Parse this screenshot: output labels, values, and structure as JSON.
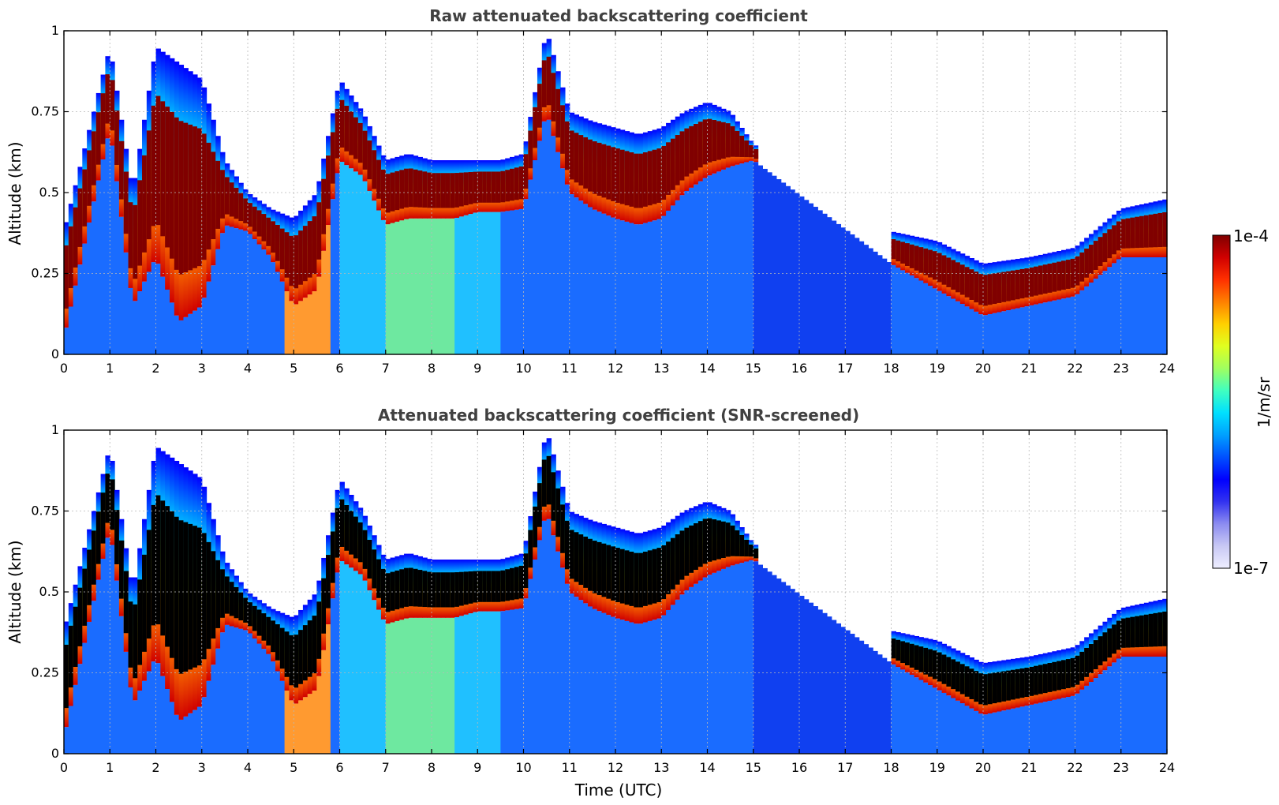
{
  "chart_data": [
    {
      "type": "heatmap",
      "title": "Raw attenuated backscattering coefficient",
      "xlabel": "",
      "ylabel": "Altitude (km)",
      "xlim": [
        0,
        24
      ],
      "ylim": [
        0,
        1
      ],
      "x_ticks": [
        "0",
        "1",
        "2",
        "3",
        "4",
        "5",
        "6",
        "7",
        "8",
        "9",
        "10",
        "11",
        "12",
        "13",
        "14",
        "15",
        "16",
        "17",
        "18",
        "19",
        "20",
        "21",
        "22",
        "23",
        "24"
      ],
      "y_ticks": [
        "0",
        "0.25",
        "0.5",
        "0.75",
        "1"
      ],
      "grid": true,
      "layer_top_km": [
        [
          0,
          0.38
        ],
        [
          1,
          0.95
        ],
        [
          1.5,
          0.5
        ],
        [
          2,
          0.95
        ],
        [
          2.5,
          0.9
        ],
        [
          3,
          0.85
        ],
        [
          3.5,
          0.6
        ],
        [
          4,
          0.5
        ],
        [
          4.5,
          0.45
        ],
        [
          5,
          0.42
        ],
        [
          5.5,
          0.5
        ],
        [
          6,
          0.85
        ],
        [
          6.5,
          0.75
        ],
        [
          7,
          0.6
        ],
        [
          7.5,
          0.62
        ],
        [
          8,
          0.6
        ],
        [
          8.5,
          0.6
        ],
        [
          9,
          0.6
        ],
        [
          9.5,
          0.6
        ],
        [
          10,
          0.62
        ],
        [
          10.5,
          1.0
        ],
        [
          11,
          0.75
        ],
        [
          11.5,
          0.72
        ],
        [
          12,
          0.7
        ],
        [
          12.5,
          0.68
        ],
        [
          13,
          0.7
        ],
        [
          13.5,
          0.75
        ],
        [
          14,
          0.78
        ],
        [
          14.5,
          0.75
        ],
        [
          15,
          0.65
        ],
        [
          18,
          0.38
        ],
        [
          19,
          0.35
        ],
        [
          20,
          0.28
        ],
        [
          21,
          0.3
        ],
        [
          22,
          0.33
        ],
        [
          23,
          0.45
        ],
        [
          24,
          0.48
        ]
      ],
      "layer_base_km": [
        [
          0,
          0.05
        ],
        [
          1,
          0.7
        ],
        [
          1.5,
          0.15
        ],
        [
          2,
          0.3
        ],
        [
          2.5,
          0.1
        ],
        [
          3,
          0.15
        ],
        [
          3.5,
          0.4
        ],
        [
          4,
          0.38
        ],
        [
          4.5,
          0.3
        ],
        [
          5,
          0.15
        ],
        [
          5.5,
          0.2
        ],
        [
          6,
          0.6
        ],
        [
          6.5,
          0.55
        ],
        [
          7,
          0.4
        ],
        [
          7.5,
          0.42
        ],
        [
          8,
          0.42
        ],
        [
          8.5,
          0.42
        ],
        [
          9,
          0.44
        ],
        [
          9.5,
          0.44
        ],
        [
          10,
          0.45
        ],
        [
          10.5,
          0.75
        ],
        [
          11,
          0.5
        ],
        [
          11.5,
          0.45
        ],
        [
          12,
          0.42
        ],
        [
          12.5,
          0.4
        ],
        [
          13,
          0.42
        ],
        [
          13.5,
          0.5
        ],
        [
          14,
          0.55
        ],
        [
          14.5,
          0.58
        ],
        [
          15,
          0.6
        ],
        [
          18,
          0.28
        ],
        [
          19,
          0.2
        ],
        [
          20,
          0.12
        ],
        [
          21,
          0.15
        ],
        [
          22,
          0.18
        ],
        [
          23,
          0.3
        ],
        [
          24,
          0.3
        ]
      ]
    },
    {
      "type": "heatmap",
      "title": "Attenuated backscattering coefficient (SNR-screened)",
      "xlabel": "Time (UTC)",
      "ylabel": "Altitude (km)",
      "xlim": [
        0,
        24
      ],
      "ylim": [
        0,
        1
      ],
      "x_ticks": [
        "0",
        "1",
        "2",
        "3",
        "4",
        "5",
        "6",
        "7",
        "8",
        "9",
        "10",
        "11",
        "12",
        "13",
        "14",
        "15",
        "16",
        "17",
        "18",
        "19",
        "20",
        "21",
        "22",
        "23",
        "24"
      ],
      "y_ticks": [
        "0",
        "0.25",
        "0.5",
        "0.75",
        "1"
      ],
      "grid": true,
      "layer_top_km": [
        [
          0,
          0.38
        ],
        [
          1,
          0.95
        ],
        [
          1.5,
          0.5
        ],
        [
          2,
          0.95
        ],
        [
          2.5,
          0.9
        ],
        [
          3,
          0.85
        ],
        [
          3.5,
          0.6
        ],
        [
          4,
          0.5
        ],
        [
          4.5,
          0.45
        ],
        [
          5,
          0.42
        ],
        [
          5.5,
          0.5
        ],
        [
          6,
          0.85
        ],
        [
          6.5,
          0.75
        ],
        [
          7,
          0.6
        ],
        [
          7.5,
          0.62
        ],
        [
          8,
          0.6
        ],
        [
          8.5,
          0.6
        ],
        [
          9,
          0.6
        ],
        [
          9.5,
          0.6
        ],
        [
          10,
          0.62
        ],
        [
          10.5,
          1.0
        ],
        [
          11,
          0.75
        ],
        [
          11.5,
          0.72
        ],
        [
          12,
          0.7
        ],
        [
          12.5,
          0.68
        ],
        [
          13,
          0.7
        ],
        [
          13.5,
          0.75
        ],
        [
          14,
          0.78
        ],
        [
          14.5,
          0.75
        ],
        [
          15,
          0.65
        ],
        [
          18,
          0.38
        ],
        [
          19,
          0.35
        ],
        [
          20,
          0.28
        ],
        [
          21,
          0.3
        ],
        [
          22,
          0.33
        ],
        [
          23,
          0.45
        ],
        [
          24,
          0.48
        ]
      ],
      "layer_base_km": [
        [
          0,
          0.05
        ],
        [
          1,
          0.7
        ],
        [
          1.5,
          0.15
        ],
        [
          2,
          0.3
        ],
        [
          2.5,
          0.1
        ],
        [
          3,
          0.15
        ],
        [
          3.5,
          0.4
        ],
        [
          4,
          0.38
        ],
        [
          4.5,
          0.3
        ],
        [
          5,
          0.15
        ],
        [
          5.5,
          0.2
        ],
        [
          6,
          0.6
        ],
        [
          6.5,
          0.55
        ],
        [
          7,
          0.4
        ],
        [
          7.5,
          0.42
        ],
        [
          8,
          0.42
        ],
        [
          8.5,
          0.42
        ],
        [
          9,
          0.44
        ],
        [
          9.5,
          0.44
        ],
        [
          10,
          0.45
        ],
        [
          10.5,
          0.75
        ],
        [
          11,
          0.5
        ],
        [
          11.5,
          0.45
        ],
        [
          12,
          0.42
        ],
        [
          12.5,
          0.4
        ],
        [
          13,
          0.42
        ],
        [
          13.5,
          0.5
        ],
        [
          14,
          0.55
        ],
        [
          14.5,
          0.58
        ],
        [
          15,
          0.6
        ],
        [
          18,
          0.28
        ],
        [
          19,
          0.2
        ],
        [
          20,
          0.12
        ],
        [
          21,
          0.15
        ],
        [
          22,
          0.18
        ],
        [
          23,
          0.3
        ],
        [
          24,
          0.3
        ]
      ],
      "saturated_color": "#000000"
    }
  ],
  "colorbar": {
    "max_label": "1e-4",
    "min_label": "1e-7",
    "unit_label": "1/m/sr",
    "scale": "log",
    "colors": [
      "#eeeeff",
      "#c8c8f4",
      "#8c8cf0",
      "#3232f0",
      "#0000ff",
      "#0050ff",
      "#00a0ff",
      "#00e0ff",
      "#40ffc0",
      "#a0ff60",
      "#e0ff20",
      "#ffd000",
      "#ff8000",
      "#ff3000",
      "#d00000",
      "#800000"
    ]
  }
}
